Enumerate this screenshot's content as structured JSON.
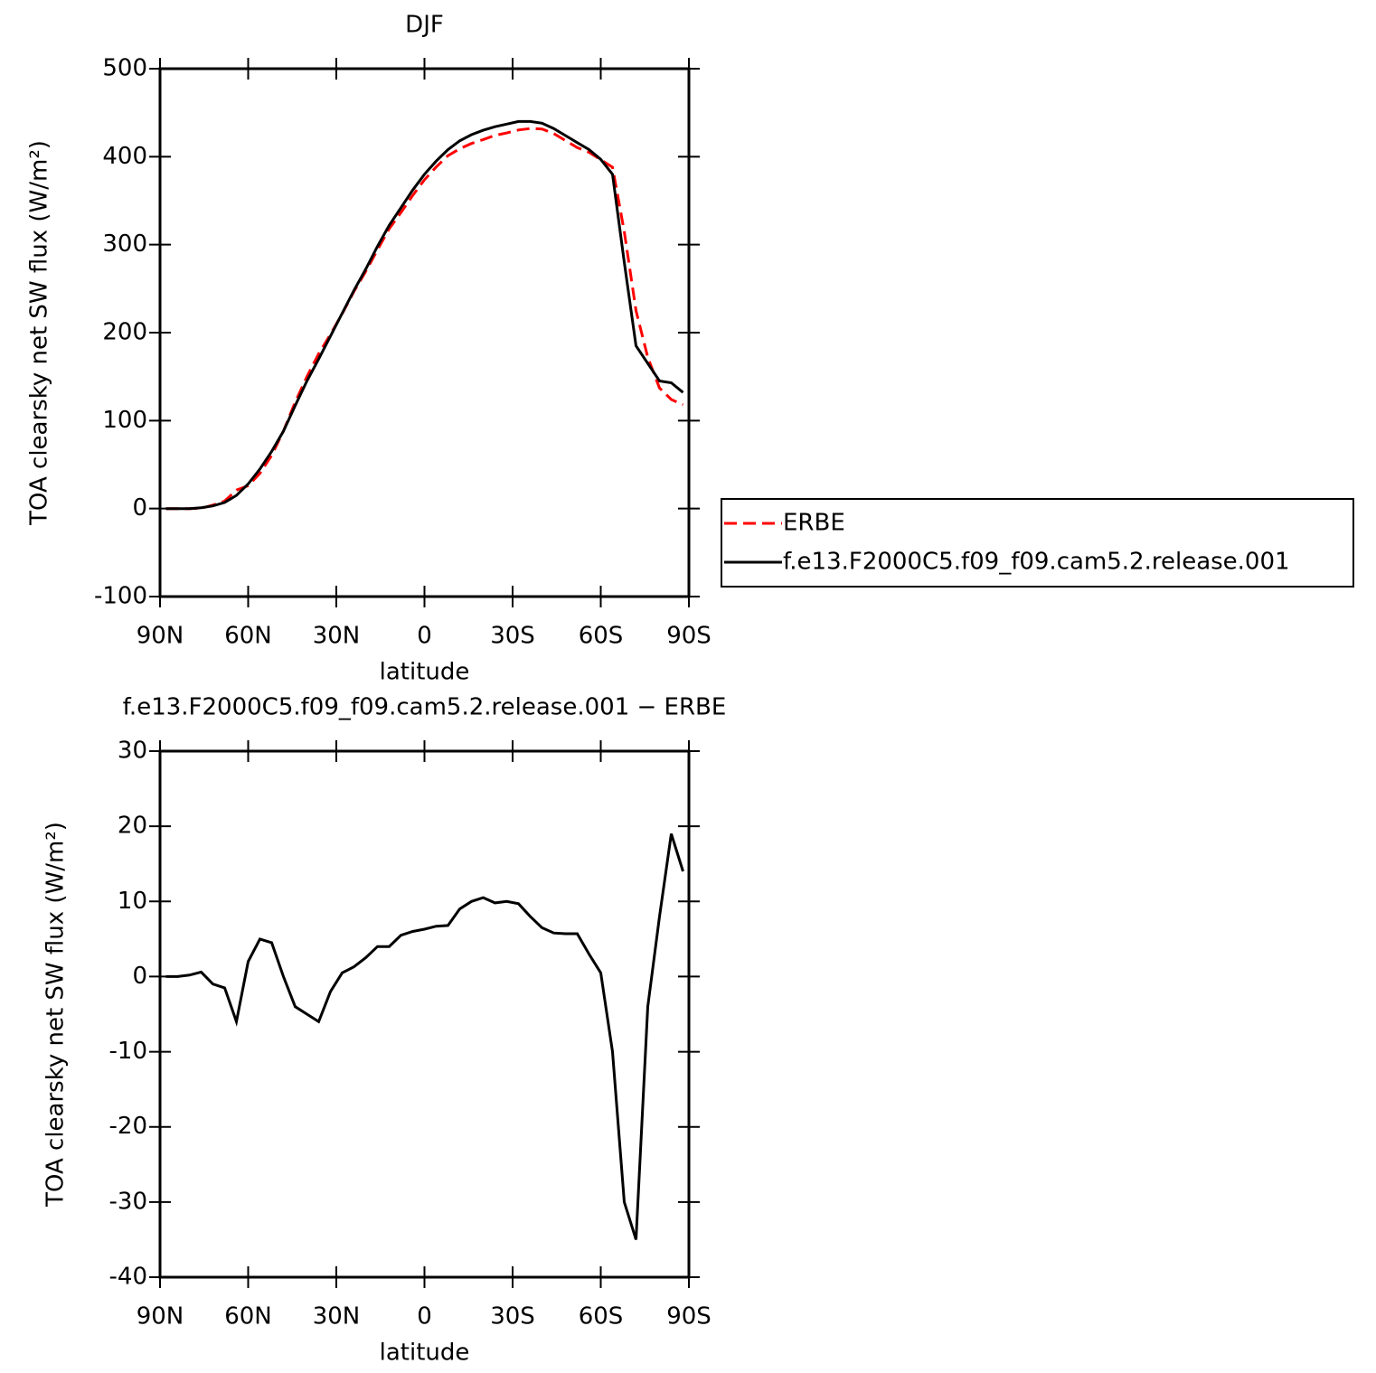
{
  "chart_data": [
    {
      "type": "line",
      "title": "DJF",
      "xlabel": "latitude",
      "ylabel": "TOA clearsky net SW flux (W/m²)",
      "x": [
        88,
        84,
        80,
        76,
        72,
        68,
        64,
        60,
        56,
        52,
        48,
        44,
        40,
        36,
        32,
        28,
        24,
        20,
        16,
        12,
        8,
        4,
        0,
        -4,
        -8,
        -12,
        -16,
        -20,
        -24,
        -28,
        -32,
        -36,
        -40,
        -44,
        -48,
        -52,
        -56,
        -60,
        -64,
        -68,
        -72,
        -76,
        -80,
        -84,
        -88
      ],
      "series": [
        {
          "name": "ERBE",
          "color": "#ff0000",
          "dash": "dashed",
          "values": [
            0,
            0,
            0,
            0.4,
            4,
            8.5,
            21,
            26,
            40,
            60.5,
            88,
            121,
            150,
            176,
            198,
            221.5,
            246.7,
            269.5,
            294,
            318,
            336.5,
            356,
            373.7,
            388.3,
            401.2,
            409,
            415,
            419.5,
            424.2,
            427,
            430.3,
            432,
            431.5,
            426.2,
            418.3,
            410.3,
            405,
            396.5,
            388,
            315,
            225,
            172,
            137,
            124,
            118
          ]
        },
        {
          "name": "f.e13.F2000C5.f09_f09.cam5.2.release.001",
          "color": "#000000",
          "dash": "solid",
          "values": [
            0,
            0,
            0,
            1,
            3,
            7,
            15,
            28,
            45,
            65,
            88,
            117,
            145,
            170,
            196,
            222,
            248,
            272,
            298,
            322,
            342,
            362,
            380,
            395,
            408,
            418,
            425,
            430,
            434,
            437,
            440,
            440,
            438,
            432,
            424,
            416,
            408,
            397,
            380,
            280,
            185,
            165,
            145,
            143,
            132
          ]
        }
      ],
      "xlim": [
        90,
        -90
      ],
      "xticks": [
        {
          "value": 90,
          "label": "90N"
        },
        {
          "value": 60,
          "label": "60N"
        },
        {
          "value": 30,
          "label": "30N"
        },
        0,
        {
          "value": -30,
          "label": "30S"
        },
        {
          "value": -60,
          "label": "60S"
        },
        {
          "value": -90,
          "label": "90S"
        }
      ],
      "ylim": [
        -100,
        500
      ],
      "yticks": [
        -100,
        0,
        100,
        200,
        300,
        400,
        500
      ],
      "legend_position": "right"
    },
    {
      "type": "line",
      "title": "f.e13.F2000C5.f09_f09.cam5.2.release.001 − ERBE",
      "xlabel": "latitude",
      "ylabel": "TOA clearsky net SW flux (W/m²)",
      "x": [
        88,
        84,
        80,
        76,
        72,
        68,
        64,
        60,
        56,
        52,
        48,
        44,
        40,
        36,
        32,
        28,
        24,
        20,
        16,
        12,
        8,
        4,
        0,
        -4,
        -8,
        -12,
        -16,
        -20,
        -24,
        -28,
        -32,
        -36,
        -40,
        -44,
        -48,
        -52,
        -56,
        -60,
        -64,
        -68,
        -72,
        -76,
        -80,
        -84,
        -88
      ],
      "series": [
        {
          "color": "#000000",
          "dash": "solid",
          "values": [
            0,
            0,
            0.2,
            0.6,
            -1,
            -1.5,
            -6,
            2,
            5,
            4.5,
            0,
            -4,
            -5,
            -6,
            -2,
            0.5,
            1.3,
            2.5,
            4,
            4,
            5.5,
            6,
            6.3,
            6.7,
            6.8,
            9,
            10,
            10.5,
            9.8,
            10,
            9.7,
            8,
            6.5,
            5.8,
            5.7,
            5.7,
            3,
            0.5,
            -10,
            -30,
            -35,
            -4,
            8,
            19,
            14
          ]
        }
      ],
      "xlim": [
        90,
        -90
      ],
      "xticks": [
        {
          "value": 90,
          "label": "90N"
        },
        {
          "value": 60,
          "label": "60N"
        },
        {
          "value": 30,
          "label": "30N"
        },
        0,
        {
          "value": -30,
          "label": "30S"
        },
        {
          "value": -60,
          "label": "60S"
        },
        {
          "value": -90,
          "label": "90S"
        }
      ],
      "ylim": [
        -40,
        30
      ],
      "yticks": [
        -40,
        -30,
        -20,
        -10,
        0,
        10,
        20,
        30
      ]
    }
  ]
}
